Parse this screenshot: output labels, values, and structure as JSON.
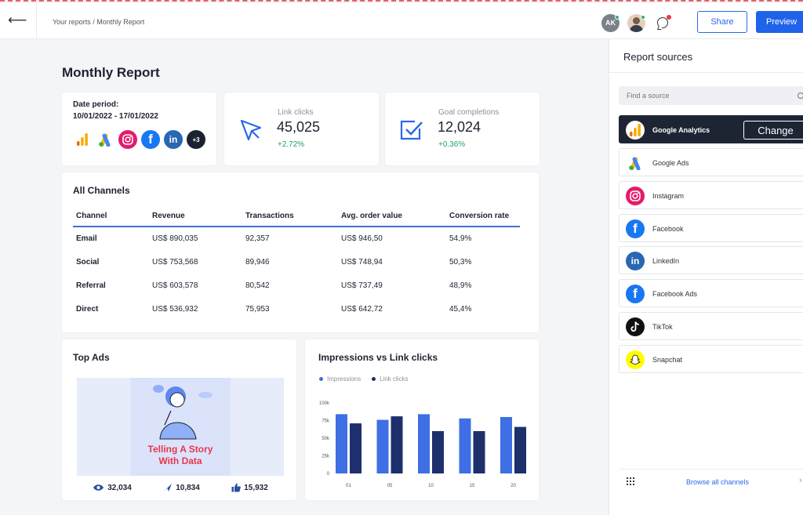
{
  "header": {
    "back_icon": "arrow-left-icon",
    "breadcrumb": "Your reports / Monthly Report",
    "avatar_initials": "AK",
    "share_label": "Share",
    "preview_label": "Preview"
  },
  "page": {
    "title": "Monthly Report"
  },
  "date_period": {
    "label": "Date period:",
    "value": "10/01/2022 - 17/01/2022",
    "more_label": "+3"
  },
  "metrics": [
    {
      "label": "Link clicks",
      "value": "45,025",
      "delta": "+2.72%",
      "icon": "cursor-icon"
    },
    {
      "label": "Goal completions",
      "value": "12,024",
      "delta": "+0.36%",
      "icon": "checkbox-icon"
    }
  ],
  "channels": {
    "title": "All Channels",
    "columns": [
      "Channel",
      "Revenue",
      "Transactions",
      "Avg. order value",
      "Conversion rate"
    ],
    "rows": [
      [
        "Email",
        "US$ 890,035",
        "92,357",
        "US$ 946,50",
        "54,9%"
      ],
      [
        "Social",
        "US$ 753,568",
        "89,946",
        "US$ 748,94",
        "50,3%"
      ],
      [
        "Referral",
        "US$ 603,578",
        "80,542",
        "US$ 737,49",
        "48,9%"
      ],
      [
        "Direct",
        "US$ 536,932",
        "75,953",
        "US$ 642,72",
        "45,4%"
      ]
    ]
  },
  "top_ads": {
    "title": "Top Ads",
    "ad_line1": "Telling A Story",
    "ad_line2": "With Data",
    "stats": [
      {
        "icon": "eye-icon",
        "value": "32,034"
      },
      {
        "icon": "send-icon",
        "value": "10,834"
      },
      {
        "icon": "thumbs-up-icon",
        "value": "15,932"
      }
    ]
  },
  "chart_data": {
    "type": "bar",
    "title": "Impressions vs Link clicks",
    "categories": [
      "01",
      "05",
      "10",
      "15",
      "20"
    ],
    "series": [
      {
        "name": "Impressions",
        "values": [
          84,
          76,
          84,
          78,
          80
        ],
        "color": "#3f6fe4"
      },
      {
        "name": "Link clicks",
        "values": [
          71,
          81,
          60,
          60,
          66
        ],
        "color": "#1e2f6e"
      }
    ],
    "yticks": [
      "0",
      "25k",
      "50k",
      "75k",
      "100k"
    ],
    "ylim": [
      0,
      100
    ],
    "legend": "top-left"
  },
  "sidebar": {
    "title": "Report sources",
    "search_placeholder": "Find a source",
    "change_label": "Change",
    "sources": [
      {
        "name": "Google Analytics",
        "icon": "google-analytics-icon",
        "active": true
      },
      {
        "name": "Google Ads",
        "icon": "google-ads-icon",
        "active": false
      },
      {
        "name": "Instagram",
        "icon": "instagram-icon",
        "active": false
      },
      {
        "name": "Facebook",
        "icon": "facebook-icon",
        "active": false
      },
      {
        "name": "LinkedIn",
        "icon": "linkedin-icon",
        "active": false
      },
      {
        "name": "Facebook Ads",
        "icon": "facebook-ads-icon",
        "active": false
      },
      {
        "name": "TikTok",
        "icon": "tiktok-icon",
        "active": false
      },
      {
        "name": "Snapchat",
        "icon": "snapchat-icon",
        "active": false
      }
    ],
    "browse_label": "Browse all channels"
  },
  "colors": {
    "accent": "#1f63ea",
    "positive": "#1aa561",
    "dark": "#1d2535"
  }
}
